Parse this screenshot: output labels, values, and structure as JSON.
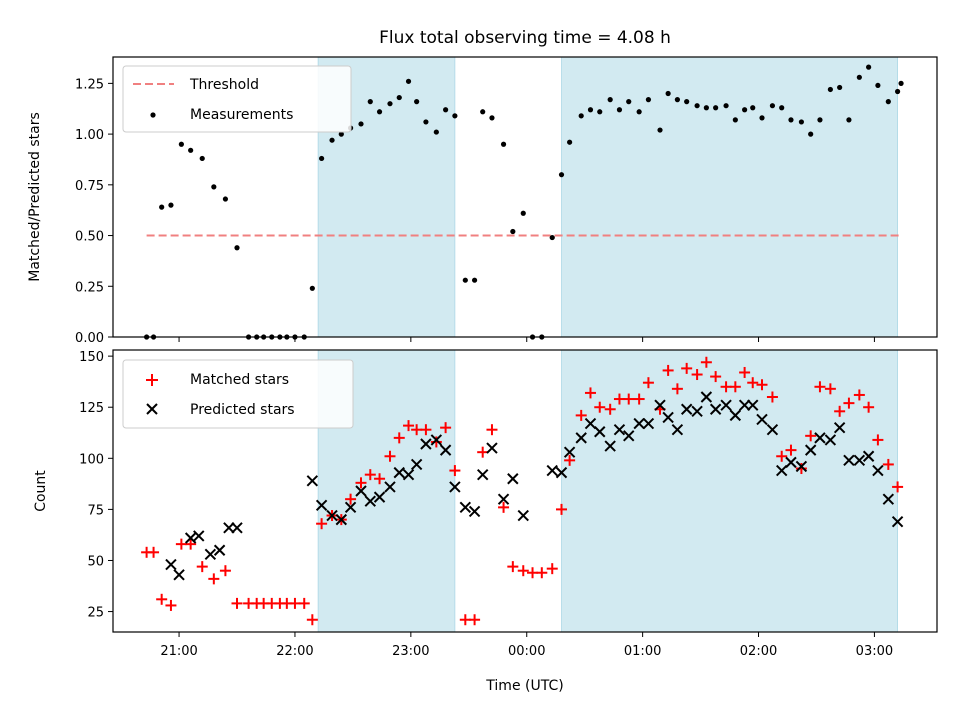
{
  "chart_data": {
    "type": "scatter",
    "title": "Flux total observing time = 4.08 h",
    "xlabel": "Time (UTC)",
    "x_ticks": [
      {
        "t": 21.0,
        "label": "21:00"
      },
      {
        "t": 22.0,
        "label": "22:00"
      },
      {
        "t": 23.0,
        "label": "23:00"
      },
      {
        "t": 24.0,
        "label": "00:00"
      },
      {
        "t": 25.0,
        "label": "01:00"
      },
      {
        "t": 26.0,
        "label": "02:00"
      },
      {
        "t": 27.0,
        "label": "03:00"
      }
    ],
    "xlim": [
      20.43,
      27.54
    ],
    "shaded_intervals": [
      [
        22.2,
        23.38
      ],
      [
        24.3,
        27.2
      ]
    ],
    "shade_color": "#add8e6",
    "panels": [
      {
        "id": "ratio",
        "ylabel": "Matched/Predicted stars",
        "ylim": [
          0,
          1.38
        ],
        "yticks": [
          "0.00",
          "0.25",
          "0.50",
          "0.75",
          "1.00",
          "1.25"
        ],
        "threshold": {
          "name": "Threshold",
          "value": 0.5,
          "x_range": [
            20.72,
            27.23
          ],
          "color": "#f08080"
        },
        "measurements": {
          "name": "Measurements",
          "color": "#000000",
          "points": [
            [
              20.72,
              0
            ],
            [
              20.78,
              0
            ],
            [
              20.85,
              0.64
            ],
            [
              20.93,
              0.65
            ],
            [
              21.02,
              0.95
            ],
            [
              21.1,
              0.92
            ],
            [
              21.2,
              0.88
            ],
            [
              21.3,
              0.74
            ],
            [
              21.4,
              0.68
            ],
            [
              21.5,
              0.44
            ],
            [
              21.6,
              0
            ],
            [
              21.67,
              0
            ],
            [
              21.73,
              0
            ],
            [
              21.8,
              0
            ],
            [
              21.87,
              0
            ],
            [
              21.93,
              0
            ],
            [
              22.0,
              0
            ],
            [
              22.08,
              0
            ],
            [
              22.15,
              0.24
            ],
            [
              22.23,
              0.88
            ],
            [
              22.32,
              0.97
            ],
            [
              22.4,
              1.0
            ],
            [
              22.48,
              1.03
            ],
            [
              22.57,
              1.05
            ],
            [
              22.65,
              1.16
            ],
            [
              22.73,
              1.11
            ],
            [
              22.82,
              1.15
            ],
            [
              22.9,
              1.18
            ],
            [
              22.98,
              1.26
            ],
            [
              23.05,
              1.16
            ],
            [
              23.13,
              1.06
            ],
            [
              23.22,
              1.01
            ],
            [
              23.3,
              1.12
            ],
            [
              23.38,
              1.09
            ],
            [
              23.47,
              0.28
            ],
            [
              23.55,
              0.28
            ],
            [
              23.62,
              1.11
            ],
            [
              23.7,
              1.08
            ],
            [
              23.8,
              0.95
            ],
            [
              23.88,
              0.52
            ],
            [
              23.97,
              0.61
            ],
            [
              24.05,
              0
            ],
            [
              24.13,
              0
            ],
            [
              24.22,
              0.49
            ],
            [
              24.3,
              0.8
            ],
            [
              24.37,
              0.96
            ],
            [
              24.47,
              1.09
            ],
            [
              24.55,
              1.12
            ],
            [
              24.63,
              1.11
            ],
            [
              24.72,
              1.17
            ],
            [
              24.8,
              1.12
            ],
            [
              24.88,
              1.16
            ],
            [
              24.97,
              1.11
            ],
            [
              25.05,
              1.17
            ],
            [
              25.15,
              1.02
            ],
            [
              25.22,
              1.2
            ],
            [
              25.3,
              1.17
            ],
            [
              25.38,
              1.16
            ],
            [
              25.47,
              1.14
            ],
            [
              25.55,
              1.13
            ],
            [
              25.63,
              1.13
            ],
            [
              25.72,
              1.14
            ],
            [
              25.8,
              1.07
            ],
            [
              25.88,
              1.12
            ],
            [
              25.95,
              1.13
            ],
            [
              26.03,
              1.08
            ],
            [
              26.12,
              1.14
            ],
            [
              26.2,
              1.13
            ],
            [
              26.28,
              1.07
            ],
            [
              26.37,
              1.06
            ],
            [
              26.45,
              1.0
            ],
            [
              26.53,
              1.07
            ],
            [
              26.62,
              1.22
            ],
            [
              26.7,
              1.23
            ],
            [
              26.78,
              1.07
            ],
            [
              26.87,
              1.28
            ],
            [
              26.95,
              1.33
            ],
            [
              27.03,
              1.24
            ],
            [
              27.12,
              1.16
            ],
            [
              27.2,
              1.21
            ],
            [
              27.23,
              1.25
            ]
          ]
        }
      },
      {
        "id": "counts",
        "ylabel": "Count",
        "ylim": [
          15,
          153
        ],
        "yticks": [
          "25",
          "50",
          "75",
          "100",
          "125",
          "150"
        ],
        "series": [
          {
            "name": "Matched stars",
            "marker": "plus",
            "color": "#ff0000",
            "points": [
              [
                20.72,
                54
              ],
              [
                20.78,
                54
              ],
              [
                20.85,
                31
              ],
              [
                20.93,
                28
              ],
              [
                21.02,
                58
              ],
              [
                21.1,
                58
              ],
              [
                21.2,
                47
              ],
              [
                21.3,
                41
              ],
              [
                21.4,
                45
              ],
              [
                21.5,
                29
              ],
              [
                21.6,
                29
              ],
              [
                21.67,
                29
              ],
              [
                21.73,
                29
              ],
              [
                21.8,
                29
              ],
              [
                21.87,
                29
              ],
              [
                21.93,
                29
              ],
              [
                22.0,
                29
              ],
              [
                22.08,
                29
              ],
              [
                22.15,
                21
              ],
              [
                22.23,
                68
              ],
              [
                22.32,
                72
              ],
              [
                22.4,
                70
              ],
              [
                22.48,
                80
              ],
              [
                22.57,
                88
              ],
              [
                22.65,
                92
              ],
              [
                22.73,
                90
              ],
              [
                22.82,
                101
              ],
              [
                22.9,
                110
              ],
              [
                22.98,
                116
              ],
              [
                23.05,
                114
              ],
              [
                23.13,
                114
              ],
              [
                23.22,
                108
              ],
              [
                23.3,
                115
              ],
              [
                23.38,
                94
              ],
              [
                23.47,
                21
              ],
              [
                23.55,
                21
              ],
              [
                23.62,
                103
              ],
              [
                23.7,
                114
              ],
              [
                23.8,
                76
              ],
              [
                23.88,
                47
              ],
              [
                23.97,
                45
              ],
              [
                24.05,
                44
              ],
              [
                24.13,
                44
              ],
              [
                24.22,
                46
              ],
              [
                24.3,
                75
              ],
              [
                24.37,
                99
              ],
              [
                24.47,
                121
              ],
              [
                24.55,
                132
              ],
              [
                24.63,
                125
              ],
              [
                24.72,
                124
              ],
              [
                24.8,
                129
              ],
              [
                24.88,
                129
              ],
              [
                24.97,
                129
              ],
              [
                25.05,
                137
              ],
              [
                25.15,
                124
              ],
              [
                25.22,
                143
              ],
              [
                25.3,
                134
              ],
              [
                25.38,
                144
              ],
              [
                25.47,
                141
              ],
              [
                25.55,
                147
              ],
              [
                25.63,
                140
              ],
              [
                25.72,
                135
              ],
              [
                25.8,
                135
              ],
              [
                25.88,
                142
              ],
              [
                25.95,
                137
              ],
              [
                26.03,
                136
              ],
              [
                26.12,
                130
              ],
              [
                26.2,
                101
              ],
              [
                26.28,
                104
              ],
              [
                26.37,
                95
              ],
              [
                26.45,
                111
              ],
              [
                26.53,
                135
              ],
              [
                26.62,
                134
              ],
              [
                26.7,
                123
              ],
              [
                26.78,
                127
              ],
              [
                26.87,
                131
              ],
              [
                26.95,
                125
              ],
              [
                27.03,
                109
              ],
              [
                27.12,
                97
              ],
              [
                27.2,
                86
              ]
            ]
          },
          {
            "name": "Predicted stars",
            "marker": "x",
            "color": "#000000",
            "points": [
              [
                20.93,
                48
              ],
              [
                21.0,
                43
              ],
              [
                21.1,
                61
              ],
              [
                21.17,
                62
              ],
              [
                21.27,
                53
              ],
              [
                21.35,
                55
              ],
              [
                21.43,
                66
              ],
              [
                21.5,
                66
              ],
              [
                22.15,
                89
              ],
              [
                22.23,
                77
              ],
              [
                22.32,
                72
              ],
              [
                22.4,
                70
              ],
              [
                22.48,
                76
              ],
              [
                22.57,
                84
              ],
              [
                22.65,
                79
              ],
              [
                22.73,
                81
              ],
              [
                22.82,
                86
              ],
              [
                22.9,
                93
              ],
              [
                22.98,
                92
              ],
              [
                23.05,
                97
              ],
              [
                23.13,
                107
              ],
              [
                23.22,
                109
              ],
              [
                23.3,
                104
              ],
              [
                23.38,
                86
              ],
              [
                23.47,
                76
              ],
              [
                23.55,
                74
              ],
              [
                23.62,
                92
              ],
              [
                23.7,
                105
              ],
              [
                23.8,
                80
              ],
              [
                23.88,
                90
              ],
              [
                23.97,
                72
              ],
              [
                24.22,
                94
              ],
              [
                24.3,
                93
              ],
              [
                24.37,
                103
              ],
              [
                24.47,
                110
              ],
              [
                24.55,
                117
              ],
              [
                24.63,
                113
              ],
              [
                24.72,
                106
              ],
              [
                24.8,
                114
              ],
              [
                24.88,
                111
              ],
              [
                24.97,
                117
              ],
              [
                25.05,
                117
              ],
              [
                25.15,
                126
              ],
              [
                25.22,
                120
              ],
              [
                25.3,
                114
              ],
              [
                25.38,
                124
              ],
              [
                25.47,
                123
              ],
              [
                25.55,
                130
              ],
              [
                25.63,
                124
              ],
              [
                25.72,
                126
              ],
              [
                25.8,
                121
              ],
              [
                25.88,
                126
              ],
              [
                25.95,
                126
              ],
              [
                26.03,
                119
              ],
              [
                26.12,
                114
              ],
              [
                26.2,
                94
              ],
              [
                26.28,
                98
              ],
              [
                26.37,
                96
              ],
              [
                26.45,
                104
              ],
              [
                26.53,
                110
              ],
              [
                26.62,
                109
              ],
              [
                26.7,
                115
              ],
              [
                26.78,
                99
              ],
              [
                26.87,
                99
              ],
              [
                26.95,
                101
              ],
              [
                27.03,
                94
              ],
              [
                27.12,
                80
              ],
              [
                27.2,
                69
              ]
            ]
          }
        ]
      }
    ]
  }
}
